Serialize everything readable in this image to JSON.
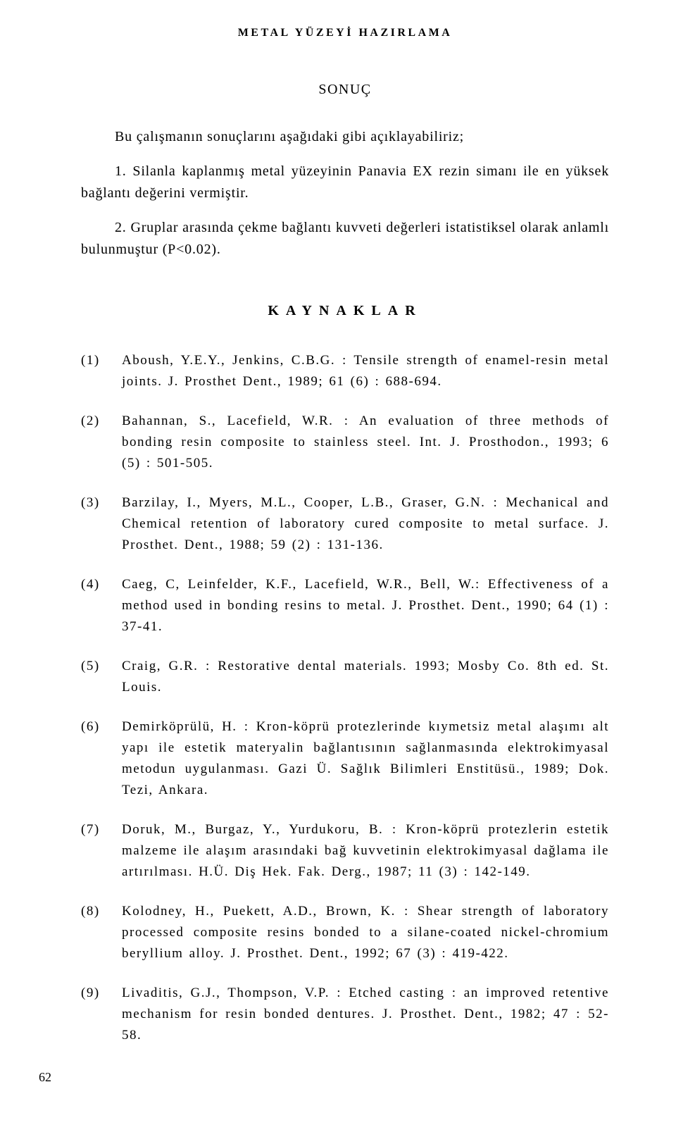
{
  "running_head": "METAL YÜZEYİ HAZIRLAMA",
  "section_title": "SONUÇ",
  "para1": "Bu çalışmanın sonuçlarını aşağıdaki gibi açıklayabiliriz;",
  "para2": "1. Silanla kaplanmış metal yüzeyinin Panavia EX rezin simanı ile en yüksek bağlantı değerini vermiştir.",
  "para3": "2. Gruplar arasında çekme bağlantı kuvveti değerleri istatistiksel olarak anlamlı bulunmuştur (P<0.02).",
  "kaynaklar_title": "KAYNAKLAR",
  "refs": [
    {
      "n": "(1)",
      "t": "Aboush, Y.E.Y., Jenkins, C.B.G. : Tensile strength of enamel-resin metal joints. J. Prosthet Dent., 1989; 61 (6) : 688-694."
    },
    {
      "n": "(2)",
      "t": "Bahannan, S., Lacefield, W.R. : An evaluation of three methods of bonding resin composite to stainless steel. Int. J. Prosthodon., 1993; 6 (5) : 501-505."
    },
    {
      "n": "(3)",
      "t": "Barzilay, I., Myers, M.L., Cooper, L.B., Graser, G.N. : Mechanical and Chemical retention of laboratory cured composite to metal surface. J. Prosthet. Dent., 1988; 59 (2) : 131-136."
    },
    {
      "n": "(4)",
      "t": "Caeg, C, Leinfelder, K.F., Lacefield, W.R., Bell, W.: Effectiveness of a method used in bonding resins to metal. J. Prosthet. Dent., 1990; 64 (1) : 37-41."
    },
    {
      "n": "(5)",
      "t": "Craig, G.R. : Restorative dental materials. 1993; Mosby Co. 8th ed. St. Louis."
    },
    {
      "n": "(6)",
      "t": "Demirköprülü, H. : Kron-köprü protezlerinde kıymetsiz metal alaşımı alt yapı ile estetik materyalin bağlantısının sağlanmasında elektrokimyasal metodun uygulanması. Gazi Ü. Sağlık Bilimleri Enstitüsü., 1989; Dok. Tezi, Ankara."
    },
    {
      "n": "(7)",
      "t": "Doruk, M., Burgaz, Y., Yurdukoru, B. : Kron-köprü protezlerin estetik malzeme ile alaşım arasındaki bağ kuvvetinin elektrokimyasal dağlama ile artırılması. H.Ü. Diş Hek. Fak. Derg., 1987; 11 (3) : 142-149."
    },
    {
      "n": "(8)",
      "t": "Kolodney, H., Puekett, A.D., Brown, K. : Shear strength of laboratory processed composite resins bonded to a silane-coated nickel-chromium beryllium alloy. J. Prosthet. Dent., 1992; 67 (3) : 419-422."
    },
    {
      "n": "(9)",
      "t": "Livaditis, G.J., Thompson, V.P. : Etched casting : an improved retentive mechanism for resin bonded dentures. J. Prosthet. Dent., 1982; 47 : 52-58."
    }
  ],
  "page_number": "62",
  "colors": {
    "bg": "#ffffff",
    "text": "#000000"
  },
  "typography": {
    "family": "Times New Roman",
    "body_size_pt": 15,
    "head_size_pt": 12
  }
}
